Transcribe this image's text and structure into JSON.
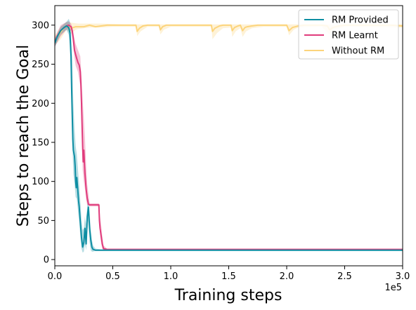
{
  "chart_data": {
    "type": "line",
    "xlabel": "Training steps",
    "ylabel": "Steps to reach the Goal",
    "x_offset_label": "1e5",
    "xlim": [
      0,
      3
    ],
    "ylim": [
      -8,
      325
    ],
    "x_ticks": [
      {
        "value": 0,
        "label": "0.0"
      },
      {
        "value": 0.5,
        "label": "0.5"
      },
      {
        "value": 1.0,
        "label": "1.0"
      },
      {
        "value": 1.5,
        "label": "1.5"
      },
      {
        "value": 2.0,
        "label": "2.0"
      },
      {
        "value": 2.5,
        "label": "2.5"
      },
      {
        "value": 3.0,
        "label": "3.0"
      }
    ],
    "y_ticks": [
      {
        "value": 0,
        "label": "0"
      },
      {
        "value": 50,
        "label": "50"
      },
      {
        "value": 100,
        "label": "100"
      },
      {
        "value": 150,
        "label": "150"
      },
      {
        "value": 200,
        "label": "200"
      },
      {
        "value": 250,
        "label": "250"
      },
      {
        "value": 300,
        "label": "300"
      }
    ],
    "legend_position": "top-right",
    "series": [
      {
        "name": "Without RM",
        "color": "#fcd47c",
        "mean": [
          [
            0,
            280
          ],
          [
            0.02,
            285
          ],
          [
            0.05,
            291
          ],
          [
            0.08,
            297
          ],
          [
            0.1,
            299
          ],
          [
            0.14,
            296
          ],
          [
            0.18,
            298
          ],
          [
            0.2,
            298
          ],
          [
            0.25,
            298
          ],
          [
            0.3,
            300
          ],
          [
            0.35,
            298
          ],
          [
            0.4,
            299
          ],
          [
            0.45,
            300
          ],
          [
            0.5,
            300
          ],
          [
            0.6,
            300
          ],
          [
            0.7,
            300
          ],
          [
            0.71,
            292
          ],
          [
            0.73,
            296
          ],
          [
            0.76,
            299
          ],
          [
            0.8,
            300
          ],
          [
            0.9,
            300
          ],
          [
            0.91,
            294
          ],
          [
            0.93,
            298
          ],
          [
            0.96,
            300
          ],
          [
            1.0,
            300
          ],
          [
            1.2,
            300
          ],
          [
            1.35,
            300
          ],
          [
            1.36,
            292
          ],
          [
            1.38,
            296
          ],
          [
            1.42,
            299
          ],
          [
            1.45,
            300
          ],
          [
            1.52,
            300
          ],
          [
            1.53,
            293
          ],
          [
            1.55,
            297
          ],
          [
            1.58,
            299
          ],
          [
            1.6,
            300
          ],
          [
            1.62,
            293
          ],
          [
            1.64,
            297
          ],
          [
            1.66,
            298
          ],
          [
            1.7,
            299
          ],
          [
            1.75,
            300
          ],
          [
            1.8,
            300
          ],
          [
            1.9,
            300
          ],
          [
            2.0,
            300
          ],
          [
            2.02,
            293
          ],
          [
            2.05,
            297
          ],
          [
            2.1,
            299
          ],
          [
            2.15,
            300
          ],
          [
            2.2,
            300
          ],
          [
            2.25,
            300
          ],
          [
            2.3,
            300
          ],
          [
            2.35,
            299
          ],
          [
            2.37,
            294
          ],
          [
            2.4,
            297
          ],
          [
            2.45,
            299
          ],
          [
            2.5,
            300
          ],
          [
            2.6,
            300
          ],
          [
            2.7,
            300
          ],
          [
            2.8,
            300
          ],
          [
            2.9,
            300
          ],
          [
            3.0,
            299
          ]
        ],
        "upper": [
          [
            0,
            287
          ],
          [
            0.05,
            298
          ],
          [
            0.1,
            304
          ],
          [
            0.2,
            302
          ],
          [
            0.4,
            302
          ],
          [
            0.6,
            301
          ],
          [
            0.7,
            301
          ],
          [
            0.75,
            301
          ],
          [
            0.9,
            301
          ],
          [
            1.0,
            301
          ],
          [
            1.35,
            301
          ],
          [
            1.45,
            301
          ],
          [
            1.52,
            301
          ],
          [
            1.6,
            301
          ],
          [
            1.7,
            301
          ],
          [
            1.8,
            301
          ],
          [
            2.0,
            301
          ],
          [
            2.1,
            301
          ],
          [
            2.3,
            301
          ],
          [
            2.5,
            301
          ],
          [
            3.0,
            301
          ]
        ],
        "lower": [
          [
            0,
            274
          ],
          [
            0.02,
            277
          ],
          [
            0.05,
            282
          ],
          [
            0.08,
            289
          ],
          [
            0.1,
            294
          ],
          [
            0.14,
            289
          ],
          [
            0.18,
            294
          ],
          [
            0.2,
            295
          ],
          [
            0.3,
            297
          ],
          [
            0.4,
            297
          ],
          [
            0.5,
            298
          ],
          [
            0.7,
            298
          ],
          [
            0.71,
            286
          ],
          [
            0.74,
            292
          ],
          [
            0.8,
            298
          ],
          [
            0.9,
            298
          ],
          [
            0.91,
            288
          ],
          [
            0.94,
            294
          ],
          [
            1.0,
            298
          ],
          [
            1.35,
            298
          ],
          [
            1.36,
            282
          ],
          [
            1.4,
            290
          ],
          [
            1.45,
            296
          ],
          [
            1.52,
            297
          ],
          [
            1.53,
            285
          ],
          [
            1.56,
            292
          ],
          [
            1.6,
            296
          ],
          [
            1.62,
            285
          ],
          [
            1.65,
            292
          ],
          [
            1.7,
            296
          ],
          [
            1.8,
            298
          ],
          [
            2.0,
            298
          ],
          [
            2.02,
            287
          ],
          [
            2.06,
            294
          ],
          [
            2.1,
            297
          ],
          [
            2.3,
            298
          ],
          [
            2.37,
            288
          ],
          [
            2.41,
            294
          ],
          [
            2.5,
            298
          ],
          [
            3.0,
            297
          ]
        ]
      },
      {
        "name": "RM Learnt",
        "color": "#e03c7c",
        "mean": [
          [
            0,
            278
          ],
          [
            0.02,
            286
          ],
          [
            0.05,
            293
          ],
          [
            0.08,
            297
          ],
          [
            0.1,
            299
          ],
          [
            0.12,
            300
          ],
          [
            0.14,
            298
          ],
          [
            0.15,
            293
          ],
          [
            0.16,
            282
          ],
          [
            0.17,
            268
          ],
          [
            0.18,
            262
          ],
          [
            0.19,
            257
          ],
          [
            0.2,
            252
          ],
          [
            0.21,
            249
          ],
          [
            0.215,
            245
          ],
          [
            0.22,
            240
          ],
          [
            0.225,
            225
          ],
          [
            0.23,
            200
          ],
          [
            0.235,
            172
          ],
          [
            0.24,
            145
          ],
          [
            0.245,
            125
          ],
          [
            0.25,
            140
          ],
          [
            0.26,
            110
          ],
          [
            0.27,
            90
          ],
          [
            0.28,
            78
          ],
          [
            0.29,
            71
          ],
          [
            0.3,
            70
          ],
          [
            0.35,
            70
          ],
          [
            0.38,
            70
          ],
          [
            0.385,
            50
          ],
          [
            0.39,
            40
          ],
          [
            0.4,
            30
          ],
          [
            0.41,
            20
          ],
          [
            0.42,
            14
          ],
          [
            0.45,
            13
          ],
          [
            0.5,
            13
          ],
          [
            1.0,
            13
          ],
          [
            1.5,
            13
          ],
          [
            2.0,
            13
          ],
          [
            2.5,
            13
          ],
          [
            3.0,
            13
          ]
        ],
        "upper": [
          [
            0,
            284
          ],
          [
            0.05,
            300
          ],
          [
            0.1,
            304
          ],
          [
            0.12,
            305
          ],
          [
            0.14,
            302
          ],
          [
            0.15,
            298
          ],
          [
            0.16,
            290
          ],
          [
            0.17,
            282
          ],
          [
            0.18,
            276
          ],
          [
            0.2,
            268
          ],
          [
            0.22,
            260
          ],
          [
            0.23,
            232
          ],
          [
            0.24,
            205
          ],
          [
            0.25,
            180
          ],
          [
            0.26,
            155
          ],
          [
            0.27,
            120
          ],
          [
            0.28,
            96
          ],
          [
            0.3,
            72
          ],
          [
            0.38,
            72
          ],
          [
            0.39,
            56
          ],
          [
            0.4,
            44
          ],
          [
            0.41,
            30
          ],
          [
            0.42,
            18
          ],
          [
            0.45,
            14
          ],
          [
            3.0,
            14
          ]
        ],
        "lower": [
          [
            0,
            272
          ],
          [
            0.05,
            286
          ],
          [
            0.1,
            294
          ],
          [
            0.12,
            295
          ],
          [
            0.14,
            292
          ],
          [
            0.15,
            285
          ],
          [
            0.16,
            272
          ],
          [
            0.17,
            258
          ],
          [
            0.18,
            248
          ],
          [
            0.2,
            240
          ],
          [
            0.22,
            222
          ],
          [
            0.23,
            175
          ],
          [
            0.24,
            115
          ],
          [
            0.25,
            100
          ],
          [
            0.26,
            90
          ],
          [
            0.27,
            76
          ],
          [
            0.28,
            70
          ],
          [
            0.3,
            68
          ],
          [
            0.38,
            68
          ],
          [
            0.39,
            32
          ],
          [
            0.4,
            20
          ],
          [
            0.41,
            14
          ],
          [
            0.42,
            12
          ],
          [
            0.45,
            12
          ],
          [
            3.0,
            12
          ]
        ]
      },
      {
        "name": "RM Provided",
        "color": "#0e8ea3",
        "mean": [
          [
            0,
            277
          ],
          [
            0.02,
            285
          ],
          [
            0.05,
            293
          ],
          [
            0.08,
            297
          ],
          [
            0.1,
            299
          ],
          [
            0.12,
            297
          ],
          [
            0.13,
            290
          ],
          [
            0.14,
            260
          ],
          [
            0.145,
            220
          ],
          [
            0.15,
            185
          ],
          [
            0.155,
            155
          ],
          [
            0.16,
            140
          ],
          [
            0.17,
            132
          ],
          [
            0.175,
            120
          ],
          [
            0.18,
            100
          ],
          [
            0.185,
            92
          ],
          [
            0.19,
            105
          ],
          [
            0.2,
            85
          ],
          [
            0.205,
            75
          ],
          [
            0.21,
            68
          ],
          [
            0.22,
            48
          ],
          [
            0.23,
            28
          ],
          [
            0.24,
            16
          ],
          [
            0.25,
            22
          ],
          [
            0.26,
            40
          ],
          [
            0.265,
            30
          ],
          [
            0.27,
            20
          ],
          [
            0.28,
            55
          ],
          [
            0.29,
            67
          ],
          [
            0.3,
            40
          ],
          [
            0.31,
            25
          ],
          [
            0.32,
            16
          ],
          [
            0.33,
            13
          ],
          [
            0.35,
            12
          ],
          [
            0.4,
            12
          ],
          [
            0.5,
            12
          ],
          [
            1.0,
            12
          ],
          [
            1.5,
            12
          ],
          [
            2.0,
            12
          ],
          [
            2.5,
            12
          ],
          [
            3.0,
            12
          ]
        ],
        "upper": [
          [
            0,
            282
          ],
          [
            0.05,
            298
          ],
          [
            0.1,
            304
          ],
          [
            0.12,
            308
          ],
          [
            0.13,
            304
          ],
          [
            0.14,
            290
          ],
          [
            0.15,
            255
          ],
          [
            0.16,
            200
          ],
          [
            0.17,
            168
          ],
          [
            0.18,
            145
          ],
          [
            0.19,
            135
          ],
          [
            0.2,
            115
          ],
          [
            0.21,
            95
          ],
          [
            0.22,
            75
          ],
          [
            0.23,
            50
          ],
          [
            0.24,
            38
          ],
          [
            0.25,
            40
          ],
          [
            0.26,
            55
          ],
          [
            0.27,
            45
          ],
          [
            0.28,
            70
          ],
          [
            0.29,
            78
          ],
          [
            0.3,
            60
          ],
          [
            0.31,
            38
          ],
          [
            0.32,
            25
          ],
          [
            0.33,
            18
          ],
          [
            0.35,
            14
          ],
          [
            0.4,
            13
          ],
          [
            3.0,
            13
          ]
        ],
        "lower": [
          [
            0,
            272
          ],
          [
            0.05,
            288
          ],
          [
            0.1,
            294
          ],
          [
            0.12,
            288
          ],
          [
            0.13,
            276
          ],
          [
            0.14,
            225
          ],
          [
            0.15,
            150
          ],
          [
            0.16,
            110
          ],
          [
            0.17,
            98
          ],
          [
            0.18,
            80
          ],
          [
            0.19,
            78
          ],
          [
            0.2,
            62
          ],
          [
            0.21,
            48
          ],
          [
            0.22,
            30
          ],
          [
            0.23,
            14
          ],
          [
            0.24,
            9
          ],
          [
            0.25,
            10
          ],
          [
            0.26,
            20
          ],
          [
            0.27,
            12
          ],
          [
            0.28,
            35
          ],
          [
            0.29,
            50
          ],
          [
            0.3,
            22
          ],
          [
            0.31,
            12
          ],
          [
            0.32,
            10
          ],
          [
            0.33,
            10
          ],
          [
            0.35,
            11
          ],
          [
            0.4,
            11
          ],
          [
            3.0,
            11
          ]
        ]
      }
    ],
    "legend": [
      {
        "name": "RM Provided",
        "color": "#0e8ea3"
      },
      {
        "name": "RM Learnt",
        "color": "#e03c7c"
      },
      {
        "name": "Without RM",
        "color": "#fcd47c"
      }
    ]
  }
}
